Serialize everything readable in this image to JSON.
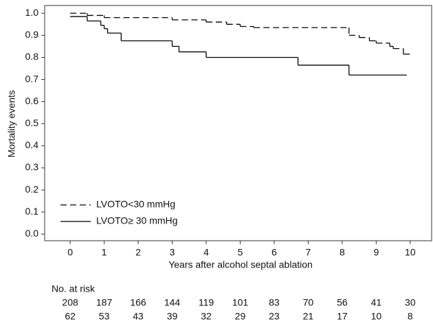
{
  "chart_data": {
    "type": "step",
    "ylabel": "Mortality events",
    "xlabel": "Years after alcohol septal ablation",
    "xlim": [
      -0.75,
      10.63
    ],
    "ylim": [
      -0.03,
      1.035
    ],
    "xticks": [
      0,
      1,
      2,
      3,
      4,
      5,
      6,
      7,
      8,
      9,
      10
    ],
    "yticks": [
      {
        "value": 0,
        "label": "0.0"
      },
      0.1,
      0.2,
      0.3,
      0.4,
      0.5,
      0.6,
      0.7,
      0.8,
      0.9,
      {
        "value": 1,
        "label": "1.0"
      }
    ],
    "legend": "lower left",
    "series": [
      {
        "name": "LVOTO<30 mmHg",
        "color": "#000000",
        "line_style": "dashed",
        "x": [
          0,
          0.5,
          1.0,
          3.0,
          4.0,
          4.6,
          5.0,
          5.4,
          8.2,
          8.5,
          8.8,
          9.0,
          9.4,
          9.5,
          9.8,
          10.0
        ],
        "values": [
          1.0,
          0.99,
          0.98,
          0.97,
          0.96,
          0.95,
          0.94,
          0.935,
          0.9,
          0.89,
          0.875,
          0.865,
          0.85,
          0.84,
          0.815,
          0.815
        ]
      },
      {
        "name": "LVOTO≥ 30 mmHg",
        "color": "#000000",
        "line_style": "solid",
        "x": [
          0,
          0.5,
          0.9,
          1.0,
          1.1,
          1.5,
          3.0,
          3.2,
          4.0,
          6.7,
          8.2,
          9.9
        ],
        "values": [
          0.985,
          0.965,
          0.945,
          0.93,
          0.91,
          0.875,
          0.85,
          0.825,
          0.8,
          0.765,
          0.72,
          0.72
        ]
      }
    ],
    "risk_table": {
      "title": "No. at risk",
      "rows": [
        [
          208,
          187,
          166,
          144,
          119,
          101,
          83,
          70,
          56,
          41,
          30
        ],
        [
          62,
          53,
          43,
          39,
          32,
          29,
          23,
          21,
          17,
          10,
          8
        ]
      ]
    }
  }
}
